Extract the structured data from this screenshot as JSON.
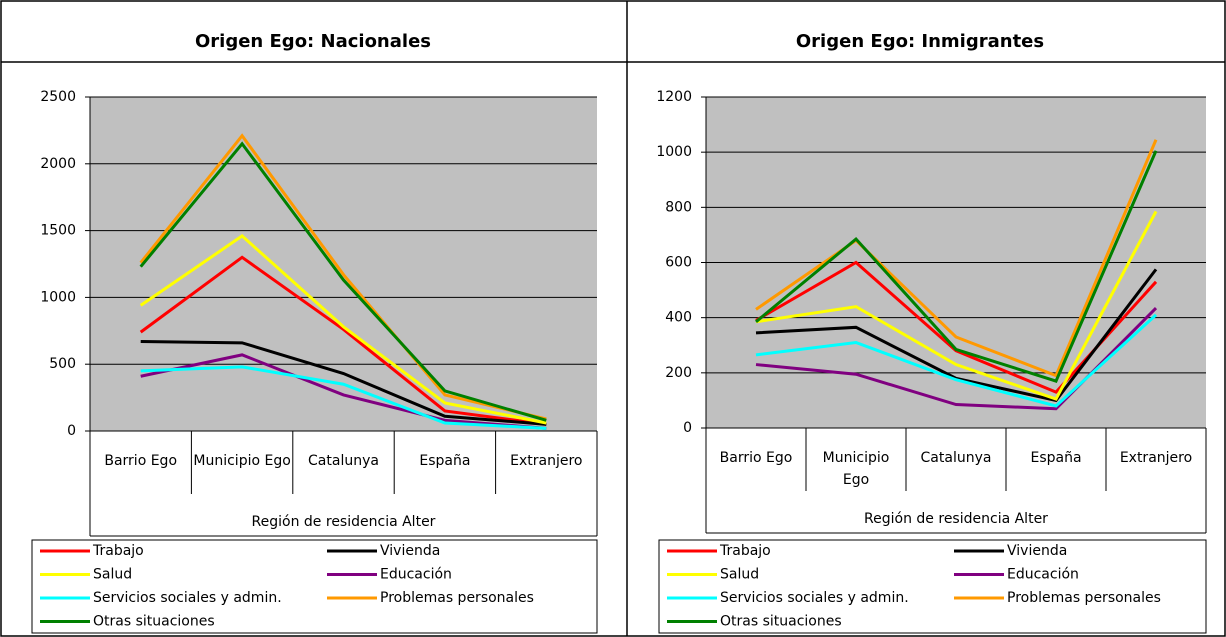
{
  "chart_data": [
    {
      "type": "line",
      "title": "Origen Ego: Nacionales",
      "xlabel": "Región de residencia Alter",
      "categories": [
        "Barrio Ego",
        "Municipio Ego",
        "Catalunya",
        "España",
        "Extranjero"
      ],
      "ylim": [
        0,
        2500
      ],
      "yticks": [
        0,
        500,
        1000,
        1500,
        2000,
        2500
      ],
      "grid": true,
      "legend": "bottom",
      "series": [
        {
          "name": "Trabajo",
          "color": "#ff0000",
          "values": [
            740,
            1300,
            760,
            150,
            50
          ]
        },
        {
          "name": "Vivienda",
          "color": "#000000",
          "values": [
            670,
            660,
            430,
            110,
            50
          ]
        },
        {
          "name": "Salud",
          "color": "#ffff00",
          "values": [
            940,
            1460,
            780,
            210,
            60
          ]
        },
        {
          "name": "Educación",
          "color": "#800080",
          "values": [
            410,
            570,
            270,
            80,
            20
          ]
        },
        {
          "name": "Servicios sociales y admin.",
          "color": "#00ffff",
          "values": [
            450,
            480,
            350,
            60,
            20
          ]
        },
        {
          "name": "Problemas personales",
          "color": "#ff9900",
          "values": [
            1260,
            2210,
            1170,
            270,
            90
          ]
        },
        {
          "name": "Otras situaciones",
          "color": "#008000",
          "values": [
            1230,
            2150,
            1130,
            300,
            80
          ]
        }
      ]
    },
    {
      "type": "line",
      "title": "Origen Ego: Inmigrantes",
      "xlabel": "Región de residencia Alter",
      "categories": [
        "Barrio Ego",
        "Municipio Ego",
        "Catalunya",
        "España",
        "Extranjero"
      ],
      "ylim": [
        0,
        1200
      ],
      "yticks": [
        0,
        200,
        400,
        600,
        800,
        1000,
        1200
      ],
      "grid": true,
      "legend": "bottom",
      "series": [
        {
          "name": "Trabajo",
          "color": "#ff0000",
          "values": [
            390,
            600,
            280,
            130,
            530
          ]
        },
        {
          "name": "Vivienda",
          "color": "#000000",
          "values": [
            345,
            365,
            180,
            100,
            575
          ]
        },
        {
          "name": "Salud",
          "color": "#ffff00",
          "values": [
            385,
            440,
            230,
            105,
            785
          ]
        },
        {
          "name": "Educación",
          "color": "#800080",
          "values": [
            230,
            195,
            85,
            70,
            435
          ]
        },
        {
          "name": "Servicios sociales y admin.",
          "color": "#00ffff",
          "values": [
            265,
            310,
            175,
            80,
            410
          ]
        },
        {
          "name": "Problemas personales",
          "color": "#ff9900",
          "values": [
            430,
            680,
            330,
            190,
            1045
          ]
        },
        {
          "name": "Otras situaciones",
          "color": "#008000",
          "values": [
            385,
            685,
            285,
            170,
            1005
          ]
        }
      ]
    }
  ]
}
